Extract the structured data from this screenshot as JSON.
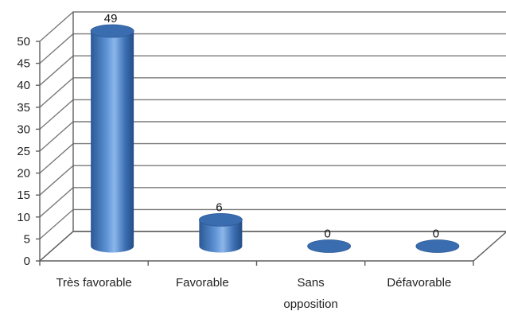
{
  "chart_data": {
    "type": "bar",
    "style": "3d-cylinder",
    "categories": [
      "Très favorable",
      "Favorable",
      "Sans opposition",
      "Défavorable"
    ],
    "category_lines": [
      [
        "Très favorable"
      ],
      [
        "Favorable"
      ],
      [
        "Sans",
        "opposition"
      ],
      [
        "Défavorable"
      ]
    ],
    "values": [
      49,
      6,
      0,
      0
    ],
    "data_labels": [
      "49",
      "6",
      "0",
      "0"
    ],
    "ylim": [
      0,
      50
    ],
    "yticks": [
      0,
      5,
      10,
      15,
      20,
      25,
      30,
      35,
      40,
      45,
      50
    ],
    "grid": true,
    "legend": "none",
    "colors": {
      "bar_dark": "#2a5894",
      "bar_mid": "#4f86cc",
      "bar_light": "#8cb6ea",
      "bar_top": "#3a6db0",
      "grid": "#7a7a7a"
    }
  }
}
